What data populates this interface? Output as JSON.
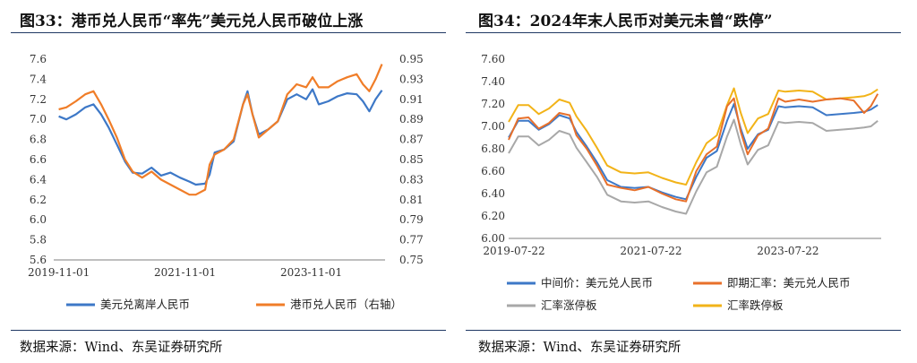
{
  "left": {
    "title": "图33：港币兑人民币“率先”美元兑人民币破位上涨",
    "source": "数据来源：Wind、东吴证券研究所",
    "colors": {
      "usd_cnh": "#3d78c7",
      "hkd_cny": "#f07d28",
      "rule": "#1f3864"
    }
  },
  "right": {
    "title": "图34：2024年末人民币对美元未曾“跌停”",
    "source": "数据来源：Wind、东吴证券研究所",
    "colors": {
      "mid": "#3d78c7",
      "spot": "#e8702a",
      "upper": "#a8a8a8",
      "lower": "#f2b318"
    }
  },
  "chart_data": [
    {
      "type": "line",
      "title": "图33：港币兑人民币“率先”美元兑人民币破位上涨",
      "x_ticks": [
        "2019-11-01",
        "2021-11-01",
        "2023-11-01"
      ],
      "x_range": [
        2019.75,
        2025.0
      ],
      "y_ticks": [
        "7.6",
        "7.4",
        "7.2",
        "7.0",
        "6.8",
        "6.6",
        "6.4",
        "6.2",
        "6.0",
        "5.8",
        "5.6"
      ],
      "ylim": [
        5.6,
        7.6
      ],
      "y2_ticks": [
        "0.95",
        "0.93",
        "0.91",
        "0.89",
        "0.87",
        "0.85",
        "0.83",
        "0.81",
        "0.79",
        "0.77",
        "0.75"
      ],
      "y2lim": [
        0.75,
        0.95
      ],
      "legend": "bottom",
      "series": [
        {
          "name": "美元兑离岸人民币",
          "axis": "left",
          "x": [
            2019.83,
            2019.95,
            2020.1,
            2020.25,
            2020.38,
            2020.5,
            2020.62,
            2020.75,
            2020.88,
            2021.0,
            2021.15,
            2021.3,
            2021.45,
            2021.6,
            2021.75,
            2021.9,
            2022.0,
            2022.15,
            2022.22,
            2022.3,
            2022.45,
            2022.6,
            2022.75,
            2022.82,
            2022.9,
            2023.0,
            2023.15,
            2023.3,
            2023.45,
            2023.6,
            2023.75,
            2023.85,
            2023.95,
            2024.1,
            2024.25,
            2024.4,
            2024.55,
            2024.65,
            2024.75,
            2024.85,
            2024.95
          ],
          "y": [
            7.03,
            7.0,
            7.05,
            7.12,
            7.15,
            7.05,
            6.92,
            6.75,
            6.58,
            6.47,
            6.46,
            6.52,
            6.44,
            6.47,
            6.42,
            6.38,
            6.35,
            6.36,
            6.45,
            6.67,
            6.7,
            6.78,
            7.15,
            7.28,
            7.05,
            6.85,
            6.9,
            6.98,
            7.2,
            7.25,
            7.2,
            7.3,
            7.15,
            7.18,
            7.23,
            7.26,
            7.25,
            7.18,
            7.08,
            7.2,
            7.29
          ]
        },
        {
          "name": "港币兑人民币（右轴）",
          "axis": "right",
          "x": [
            2019.83,
            2019.95,
            2020.1,
            2020.25,
            2020.38,
            2020.5,
            2020.62,
            2020.75,
            2020.88,
            2021.0,
            2021.15,
            2021.3,
            2021.45,
            2021.6,
            2021.75,
            2021.9,
            2022.0,
            2022.15,
            2022.22,
            2022.3,
            2022.45,
            2022.6,
            2022.75,
            2022.82,
            2022.9,
            2023.0,
            2023.15,
            2023.3,
            2023.45,
            2023.6,
            2023.75,
            2023.85,
            2023.95,
            2024.1,
            2024.25,
            2024.4,
            2024.55,
            2024.65,
            2024.75,
            2024.85,
            2024.95
          ],
          "y": [
            0.9,
            0.902,
            0.908,
            0.915,
            0.918,
            0.905,
            0.89,
            0.872,
            0.85,
            0.838,
            0.832,
            0.838,
            0.83,
            0.825,
            0.82,
            0.815,
            0.815,
            0.82,
            0.845,
            0.855,
            0.86,
            0.87,
            0.905,
            0.915,
            0.895,
            0.872,
            0.88,
            0.888,
            0.915,
            0.925,
            0.922,
            0.932,
            0.922,
            0.922,
            0.928,
            0.932,
            0.935,
            0.925,
            0.918,
            0.93,
            0.945
          ]
        }
      ]
    },
    {
      "type": "line",
      "title": "图34：2024年末人民币对美元未曾“跌停”",
      "x_ticks": [
        "2019-07-22",
        "2021-07-22",
        "2023-07-22"
      ],
      "x_range": [
        2019.56,
        2025.0
      ],
      "y_ticks": [
        "7.60",
        "7.40",
        "7.20",
        "7.00",
        "6.80",
        "6.60",
        "6.40",
        "6.20",
        "6.00"
      ],
      "ylim": [
        6.0,
        7.6
      ],
      "legend": "bottom",
      "series": [
        {
          "name": "中间价：美元兑人民币",
          "x": [
            2019.56,
            2019.7,
            2019.85,
            2020.0,
            2020.15,
            2020.3,
            2020.45,
            2020.55,
            2020.7,
            2020.85,
            2021.0,
            2021.2,
            2021.4,
            2021.6,
            2021.8,
            2022.0,
            2022.15,
            2022.3,
            2022.45,
            2022.6,
            2022.75,
            2022.85,
            2022.95,
            2023.05,
            2023.2,
            2023.35,
            2023.5,
            2023.6,
            2023.8,
            2024.0,
            2024.2,
            2024.4,
            2024.6,
            2024.75,
            2024.85,
            2024.95
          ],
          "y": [
            6.9,
            7.05,
            7.05,
            6.97,
            7.02,
            7.1,
            7.07,
            6.95,
            6.82,
            6.68,
            6.52,
            6.46,
            6.45,
            6.46,
            6.41,
            6.37,
            6.35,
            6.55,
            6.72,
            6.78,
            7.05,
            7.2,
            6.98,
            6.8,
            6.93,
            6.97,
            7.18,
            7.17,
            7.18,
            7.17,
            7.1,
            7.11,
            7.12,
            7.13,
            7.15,
            7.19
          ]
        },
        {
          "name": "即期汇率：美元兑人民币",
          "x": [
            2019.56,
            2019.7,
            2019.85,
            2020.0,
            2020.15,
            2020.3,
            2020.45,
            2020.55,
            2020.7,
            2020.85,
            2021.0,
            2021.2,
            2021.4,
            2021.6,
            2021.8,
            2022.0,
            2022.15,
            2022.3,
            2022.45,
            2022.6,
            2022.75,
            2022.85,
            2022.95,
            2023.05,
            2023.2,
            2023.35,
            2023.5,
            2023.6,
            2023.8,
            2024.0,
            2024.2,
            2024.4,
            2024.6,
            2024.75,
            2024.85,
            2024.95
          ],
          "y": [
            6.88,
            7.07,
            7.08,
            6.98,
            7.03,
            7.12,
            7.1,
            6.92,
            6.8,
            6.65,
            6.48,
            6.45,
            6.43,
            6.46,
            6.4,
            6.35,
            6.33,
            6.6,
            6.75,
            6.82,
            7.18,
            7.25,
            6.95,
            6.75,
            6.92,
            6.98,
            7.25,
            7.22,
            7.24,
            7.22,
            7.24,
            7.25,
            7.23,
            7.12,
            7.18,
            7.29
          ]
        },
        {
          "name": "汇率涨停板",
          "x": [
            2019.56,
            2019.7,
            2019.85,
            2020.0,
            2020.15,
            2020.3,
            2020.45,
            2020.55,
            2020.7,
            2020.85,
            2021.0,
            2021.2,
            2021.4,
            2021.6,
            2021.8,
            2022.0,
            2022.15,
            2022.3,
            2022.45,
            2022.6,
            2022.75,
            2022.85,
            2022.95,
            2023.05,
            2023.2,
            2023.35,
            2023.5,
            2023.6,
            2023.8,
            2024.0,
            2024.2,
            2024.4,
            2024.6,
            2024.75,
            2024.85,
            2024.95
          ],
          "y": [
            6.76,
            6.91,
            6.91,
            6.83,
            6.88,
            6.96,
            6.93,
            6.81,
            6.68,
            6.55,
            6.39,
            6.33,
            6.32,
            6.33,
            6.28,
            6.24,
            6.22,
            6.42,
            6.59,
            6.64,
            6.91,
            7.06,
            6.84,
            6.66,
            6.79,
            6.83,
            7.04,
            7.03,
            7.04,
            7.03,
            6.96,
            6.97,
            6.98,
            6.99,
            7.0,
            7.05
          ]
        },
        {
          "name": "汇率跌停板",
          "x": [
            2019.56,
            2019.7,
            2019.85,
            2020.0,
            2020.15,
            2020.3,
            2020.45,
            2020.55,
            2020.7,
            2020.85,
            2021.0,
            2021.2,
            2021.4,
            2021.6,
            2021.8,
            2022.0,
            2022.15,
            2022.3,
            2022.45,
            2022.6,
            2022.75,
            2022.85,
            2022.95,
            2023.05,
            2023.2,
            2023.35,
            2023.5,
            2023.6,
            2023.8,
            2024.0,
            2024.2,
            2024.4,
            2024.6,
            2024.75,
            2024.85,
            2024.95
          ],
          "y": [
            7.04,
            7.19,
            7.19,
            7.11,
            7.16,
            7.24,
            7.21,
            7.09,
            6.96,
            6.81,
            6.65,
            6.59,
            6.58,
            6.59,
            6.54,
            6.5,
            6.48,
            6.68,
            6.85,
            6.92,
            7.19,
            7.34,
            7.12,
            6.94,
            7.07,
            7.11,
            7.32,
            7.31,
            7.32,
            7.31,
            7.24,
            7.25,
            7.26,
            7.27,
            7.29,
            7.33
          ]
        }
      ]
    }
  ]
}
